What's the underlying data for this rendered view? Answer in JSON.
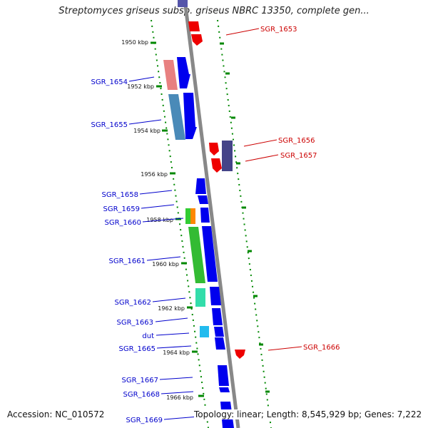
{
  "title": "Streptomyces griseus subsp. griseus NBRC 13350, complete gen...",
  "footer": {
    "accession": "Accession: NC_010572",
    "summary": "Topology: linear; Length: 8,545,929 bp; Genes: 7,222"
  },
  "colors": {
    "label_left": "#0000cc",
    "label_right": "#cc0000",
    "ruler_tick": "#008800",
    "backbone": "#888888"
  },
  "ruler_labels": [
    "1950 kbp",
    "1952 kbp",
    "1954 kbp",
    "1956 kbp",
    "1958 kbp",
    "1960 kbp",
    "1962 kbp",
    "1964 kbp",
    "1966 kbp"
  ],
  "gene_labels_left": [
    "SGR_1654",
    "SGR_1655",
    "SGR_1658",
    "SGR_1659",
    "SGR_1660",
    "SGR_1661",
    "SGR_1662",
    "SGR_1663",
    "dut",
    "SGR_1665",
    "SGR_1667",
    "SGR_1668",
    "SGR_1669"
  ],
  "gene_labels_right": [
    "SGR_1653",
    "SGR_1656",
    "SGR_1657",
    "SGR_1666"
  ]
}
